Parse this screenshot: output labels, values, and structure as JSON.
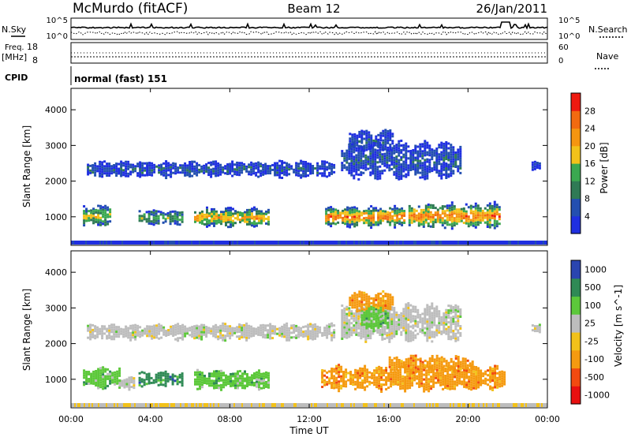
{
  "header": {
    "station": "McMurdo (fitACF)",
    "beam": "Beam 12",
    "date": "26/Jan/2011"
  },
  "top_panels": {
    "nsky_label": "N.Sky",
    "nsky_ticks": [
      "10^5",
      "10^0"
    ],
    "nsearch_label": "N.Search",
    "nsearch_ticks": [
      "10^5",
      "10^0"
    ],
    "freq_label": "Freq.",
    "freq_unit": "[MHz]",
    "freq_ticks": [
      "18",
      "8"
    ],
    "nave_label": "Nave",
    "nave_ticks": [
      "60",
      "0"
    ],
    "cpid_label": "CPID",
    "cpid_value": "normal (fast) 151"
  },
  "colors": {
    "power": [
      "#1f2fe0",
      "#234fb0",
      "#2f7a55",
      "#3aa850",
      "#f2c21a",
      "#f59510",
      "#f26a10",
      "#ee1a10"
    ],
    "velocity": [
      "#e81010",
      "#f24a10",
      "#f59a10",
      "#f2c21a",
      "#bdbdbd",
      "#5cc83a",
      "#2f8a55",
      "#2a45b0"
    ]
  },
  "chart_data": [
    {
      "type": "heatmap",
      "name": "power",
      "ylabel": "Slant Range [km]",
      "yticks": [
        1000,
        2000,
        3000,
        4000
      ],
      "ylim": [
        200,
        4600
      ],
      "colorbar_label": "Power [dB]",
      "colorbar_ticks": [
        "4",
        "8",
        "12",
        "16",
        "20",
        "24",
        "28"
      ],
      "bands": [
        {
          "t0": 0.6,
          "t1": 2.0,
          "r0": 700,
          "r1": 1400,
          "level": 4
        },
        {
          "t0": 3.4,
          "t1": 5.6,
          "r0": 750,
          "r1": 1250,
          "level": 3
        },
        {
          "t0": 6.2,
          "t1": 10.0,
          "r0": 700,
          "r1": 1300,
          "level": 5
        },
        {
          "t0": 12.8,
          "t1": 16.8,
          "r0": 700,
          "r1": 1350,
          "level": 6
        },
        {
          "t0": 17.0,
          "t1": 21.6,
          "r0": 650,
          "r1": 1450,
          "level": 6
        },
        {
          "t0": 0.8,
          "t1": 13.2,
          "r0": 2100,
          "r1": 2600,
          "level": 1
        },
        {
          "t0": 13.6,
          "t1": 19.6,
          "r0": 2000,
          "r1": 3200,
          "level": 1
        },
        {
          "t0": 14.0,
          "t1": 16.2,
          "r0": 2800,
          "r1": 3500,
          "level": 1
        },
        {
          "t0": 23.2,
          "t1": 23.6,
          "r0": 2300,
          "r1": 2600,
          "level": 1
        }
      ]
    },
    {
      "type": "heatmap",
      "name": "velocity",
      "xlabel": "Time UT",
      "ylabel": "Slant Range [km]",
      "xticks": [
        "00:00",
        "04:00",
        "08:00",
        "12:00",
        "16:00",
        "20:00",
        "00:00"
      ],
      "yticks": [
        1000,
        2000,
        3000,
        4000
      ],
      "ylim": [
        200,
        4600
      ],
      "colorbar_label": "Velocity [m s^-1]",
      "colorbar_ticks": [
        "-1000",
        "-500",
        "-100",
        "-25",
        "25",
        "100",
        "500",
        "1000"
      ],
      "bands": [
        {
          "t0": 0.6,
          "t1": 2.4,
          "r0": 700,
          "r1": 1400,
          "level": 5
        },
        {
          "t0": 2.4,
          "t1": 3.2,
          "r0": 700,
          "r1": 1100,
          "level": 4
        },
        {
          "t0": 3.4,
          "t1": 5.6,
          "r0": 800,
          "r1": 1250,
          "level": 6
        },
        {
          "t0": 6.2,
          "t1": 10.0,
          "r0": 700,
          "r1": 1300,
          "level": 5
        },
        {
          "t0": 12.6,
          "t1": 21.8,
          "r0": 650,
          "r1": 1450,
          "level": 2
        },
        {
          "t0": 16.0,
          "t1": 20.2,
          "r0": 1200,
          "r1": 1700,
          "level": 2
        },
        {
          "t0": 0.8,
          "t1": 13.2,
          "r0": 2100,
          "r1": 2600,
          "level": 4
        },
        {
          "t0": 13.6,
          "t1": 19.6,
          "r0": 2000,
          "r1": 3200,
          "level": 4
        },
        {
          "t0": 14.6,
          "t1": 16.0,
          "r0": 2300,
          "r1": 3200,
          "level": 5
        },
        {
          "t0": 14.0,
          "t1": 16.2,
          "r0": 2900,
          "r1": 3500,
          "level": 2
        },
        {
          "t0": 23.2,
          "t1": 23.6,
          "r0": 2300,
          "r1": 2600,
          "level": 4
        }
      ]
    }
  ]
}
